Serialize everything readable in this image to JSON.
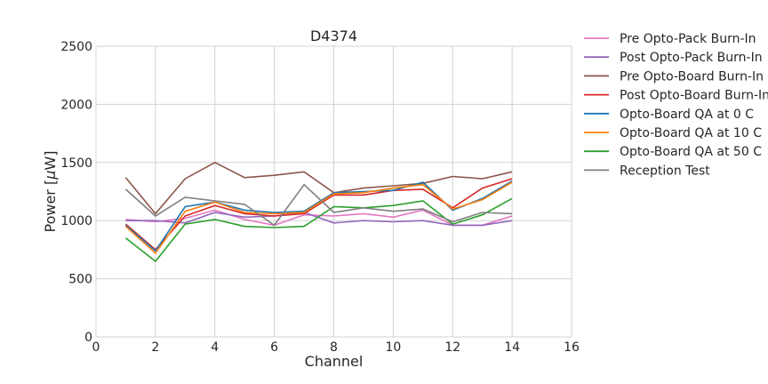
{
  "chart_data": {
    "type": "line",
    "title": "D4374",
    "xlabel": "Channel",
    "ylabel_prefix": "Power [",
    "ylabel_mu": "μ",
    "ylabel_suffix": "W]",
    "xlim": [
      0,
      16
    ],
    "ylim": [
      0,
      2500
    ],
    "xticks": [
      0,
      2,
      4,
      6,
      8,
      10,
      12,
      14,
      16
    ],
    "yticks": [
      0,
      500,
      1000,
      1500,
      2000,
      2500
    ],
    "grid": true,
    "legend_position": "outside-right",
    "x": [
      1,
      2,
      3,
      4,
      5,
      6,
      7,
      8,
      9,
      10,
      11,
      12,
      13,
      14
    ],
    "series": [
      {
        "name": "Pre Opto-Pack Burn-In",
        "color": "#e377c2",
        "values": [
          1010,
          990,
          1020,
          1090,
          1010,
          960,
          1050,
          1040,
          1060,
          1030,
          1090,
          960,
          960,
          1040
        ]
      },
      {
        "name": "Post Opto-Pack Burn-In",
        "color": "#9467bd",
        "values": [
          1000,
          1000,
          980,
          1070,
          1030,
          1040,
          1070,
          980,
          1000,
          990,
          1000,
          960,
          960,
          1000
        ]
      },
      {
        "name": "Pre Opto-Board Burn-In",
        "color": "#8c564b",
        "values": [
          1370,
          1060,
          1360,
          1500,
          1370,
          1390,
          1420,
          1240,
          1280,
          1300,
          1320,
          1380,
          1360,
          1420
        ]
      },
      {
        "name": "Post Opto-Board Burn-In",
        "color": "#d62728",
        "values": [
          970,
          750,
          1040,
          1130,
          1060,
          1040,
          1060,
          1220,
          1220,
          1260,
          1270,
          1110,
          1280,
          1360
        ]
      },
      {
        "name": "Opto-Board QA at 0 C",
        "color": "#1f77b4",
        "values": [
          960,
          740,
          1120,
          1160,
          1090,
          1070,
          1080,
          1240,
          1250,
          1260,
          1330,
          1090,
          1190,
          1340
        ]
      },
      {
        "name": "Opto-Board QA at 10 C",
        "color": "#ff7f0e",
        "values": [
          950,
          720,
          1080,
          1160,
          1070,
          1060,
          1070,
          1230,
          1240,
          1280,
          1310,
          1100,
          1180,
          1330
        ]
      },
      {
        "name": "Opto-Board QA at 50 C",
        "color": "#2ca02c",
        "values": [
          850,
          650,
          970,
          1010,
          950,
          940,
          950,
          1120,
          1110,
          1130,
          1170,
          970,
          1050,
          1190
        ]
      },
      {
        "name": "Reception Test",
        "color": "#7f7f7f",
        "values": [
          1270,
          1040,
          1200,
          1170,
          1140,
          960,
          1310,
          1070,
          1110,
          1080,
          1100,
          990,
          1070,
          1060
        ]
      }
    ]
  }
}
